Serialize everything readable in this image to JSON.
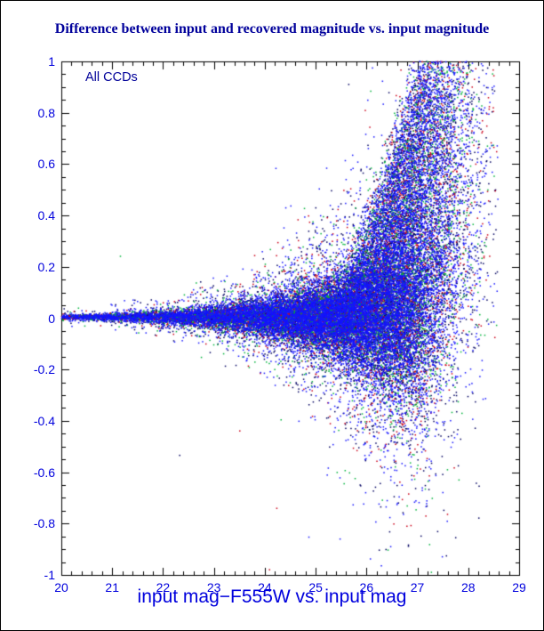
{
  "chart_data": {
    "type": "scatter",
    "title": "Difference between input and recovered magnitude vs. input magnitude",
    "annotation": "All CCDs",
    "xlabel": "input mag−F555W vs. input mag",
    "axes": {
      "xlim": [
        20,
        29
      ],
      "ylim": [
        -1,
        1
      ],
      "x_tick_values": [
        20,
        21,
        22,
        23,
        24,
        25,
        26,
        27,
        28,
        29
      ],
      "x_tick_labels": [
        "20",
        "21",
        "22",
        "23",
        "24",
        "25",
        "26",
        "27",
        "28",
        "29"
      ],
      "y_tick_values": [
        1,
        0.8,
        0.6,
        0.4,
        0.2,
        0,
        -0.2,
        -0.4,
        -0.6,
        -0.8,
        -1
      ],
      "y_tick_labels": [
        "1",
        "0.8",
        "0.6",
        "0.4",
        "0.2",
        "0",
        "-0.2",
        "-0.4",
        "-0.6",
        "-0.8",
        "-1"
      ],
      "x_minor_step": 0.2,
      "y_minor_step": 0.05,
      "grid": false
    },
    "colors": {
      "background": "#ffffff",
      "frame": "#000000",
      "title": "#00009b",
      "annotation": "#000099",
      "xlabel": "#0000dd",
      "tick_labels": "#0000dd"
    },
    "series": [
      {
        "name": "ccd-points-navy",
        "color": "#000060",
        "n": 10000,
        "seed": 101
      },
      {
        "name": "ccd-points-red",
        "color": "#cc0018",
        "n": 4600,
        "seed": 202
      },
      {
        "name": "ccd-points-green",
        "color": "#00b43c",
        "n": 4600,
        "seed": 303
      },
      {
        "name": "ccd-points-blue",
        "color": "#1414ff",
        "n": 16000,
        "seed": 404
      }
    ],
    "model": {
      "x_max_data": 28.6,
      "density_k": 0.5,
      "comp_center": 27.15,
      "comp_width": 0.3,
      "y_center": 0.004,
      "sigma_base": 0.008,
      "sigma_ref": 21,
      "sigma_log_slope": 0.23,
      "sigma_cap": 0.2,
      "wide_frac": 0.18,
      "wide_mult": 2.6,
      "tail_start": 25.0,
      "tail_prob_slope": 0.3,
      "tail_prob_max": 0.9,
      "tail_amp": 1.08,
      "tail_scale": 2.2,
      "tail_pow": 1.5,
      "tail_amp_cap": 1.06,
      "tail_u_pow": 0.9,
      "neg_center": 26.5,
      "neg_sigma": 0.45,
      "neg_prob": 0.1,
      "neg_amp": 0.5,
      "outlier_prob": 0.0012,
      "point_size": 1.5
    }
  }
}
